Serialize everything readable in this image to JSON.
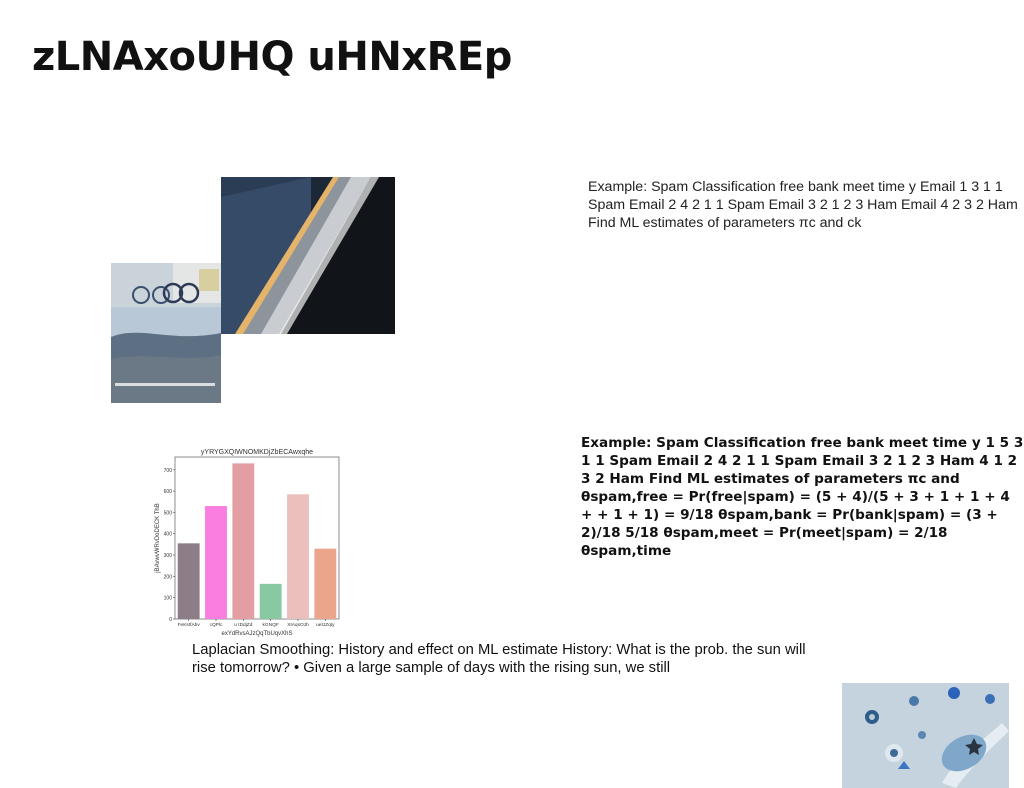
{
  "slide": {
    "title": "zLNAxoUHQ uHNxREp",
    "text_block_1": "Example: Spam Classification free bank meet time y Email 1 3 1 1 Spam Email 2 4 2 1 1 Spam Email 3 2 1 2 3 Ham Email 4 2 3 2 Ham Find ML estimates of parameters πc and ck",
    "text_block_2": "Example: Spam Classification free bank meet time y 1 5 3 1 1 Spam Email 2 4 2 1 1 Spam Email 3 2 1 2 3 Ham 4 1 2 3 2 Ham Find ML estimates of parameters πc and θspam,free = Pr(free|spam) = (5 + 4)/(5 + 3 + 1 + 1 + 4 + + 1 + 1) = 9/18 θspam,bank = Pr(bank|spam) = (3 + 2)/18 5/18 θspam,meet = Pr(meet|spam) = 2/18 θspam,time",
    "text_block_3": "Laplacian Smoothing: History and effect on ML estimate History: What is the prob. the sun will rise tomorrow? • Given a large sample of days with the rising sun, we still"
  },
  "images": {
    "street": "street-photo",
    "stairs": "stairs-photo",
    "toys": "toys-photo"
  },
  "chart_data": {
    "type": "bar",
    "title": "yYRYGXQIWNOMKDjZbECAwxqhe",
    "xlabel": "exYdRvsAJzQqTbUqvXhS",
    "ylabel": "jBAvwvWRvDoDECK ThB",
    "categories": [
      "FeKsIfAbv",
      "cQPlc",
      "u tDdjZd",
      "kGNQF",
      "XIAqsOJh",
      "uetJZqty"
    ],
    "values": [
      355,
      530,
      730,
      165,
      585,
      330
    ],
    "colors": [
      "#8c7d89",
      "#f97ee0",
      "#e39ea4",
      "#88c9a1",
      "#eabfbc",
      "#eba58a"
    ],
    "ylim": [
      0,
      760
    ],
    "yticks": [
      0,
      100,
      200,
      300,
      400,
      500,
      600,
      700
    ],
    "grid": false
  }
}
